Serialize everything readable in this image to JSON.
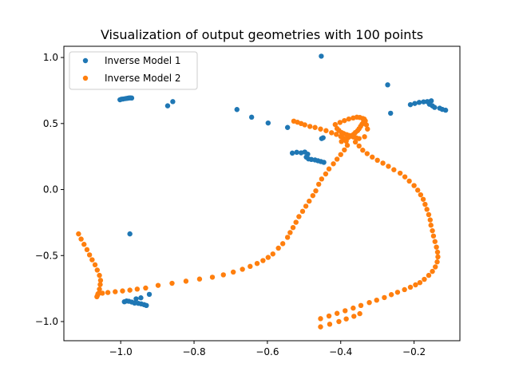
{
  "chart_data": {
    "type": "scatter",
    "title": "Visualization of output geometries with 100 points",
    "xlabel": "",
    "ylabel": "",
    "xlim": [
      -1.155,
      -0.075
    ],
    "ylim": [
      -1.145,
      1.085
    ],
    "x_ticks": [
      -1.0,
      -0.8,
      -0.6,
      -0.4,
      -0.2
    ],
    "x_tick_labels": [
      "−1.0",
      "−0.8",
      "−0.6",
      "−0.4",
      "−0.2"
    ],
    "y_ticks": [
      -1.0,
      -0.5,
      0.0,
      0.5,
      1.0
    ],
    "y_tick_labels": [
      "−1.0",
      "−0.5",
      "0.0",
      "0.5",
      "1.0"
    ],
    "grid": false,
    "legend_position": "top-left",
    "series": [
      {
        "name": "Inverse Model 1",
        "color": "#1f77b4",
        "points": [
          [
            -1.002,
            0.68
          ],
          [
            -0.998,
            0.684
          ],
          [
            -0.993,
            0.686
          ],
          [
            -0.987,
            0.689
          ],
          [
            -0.982,
            0.691
          ],
          [
            -0.978,
            0.693
          ],
          [
            -0.974,
            0.694
          ],
          [
            -0.97,
            0.693
          ],
          [
            -0.872,
            0.634
          ],
          [
            -0.858,
            0.666
          ],
          [
            -0.683,
            0.606
          ],
          [
            -0.643,
            0.548
          ],
          [
            -0.598,
            0.504
          ],
          [
            -0.545,
            0.47
          ],
          [
            -0.453,
            1.01
          ],
          [
            -0.272,
            0.793
          ],
          [
            -0.264,
            0.578
          ],
          [
            -0.21,
            0.643
          ],
          [
            -0.198,
            0.652
          ],
          [
            -0.186,
            0.66
          ],
          [
            -0.174,
            0.664
          ],
          [
            -0.164,
            0.666
          ],
          [
            -0.158,
            0.664
          ],
          [
            -0.153,
            0.672
          ],
          [
            -0.158,
            0.646
          ],
          [
            -0.15,
            0.634
          ],
          [
            -0.144,
            0.622
          ],
          [
            -0.13,
            0.616
          ],
          [
            -0.123,
            0.607
          ],
          [
            -0.114,
            0.601
          ],
          [
            -0.532,
            0.276
          ],
          [
            -0.52,
            0.282
          ],
          [
            -0.508,
            0.278
          ],
          [
            -0.498,
            0.284
          ],
          [
            -0.49,
            0.268
          ],
          [
            -0.494,
            0.246
          ],
          [
            -0.488,
            0.232
          ],
          [
            -0.48,
            0.228
          ],
          [
            -0.47,
            0.224
          ],
          [
            -0.462,
            0.218
          ],
          [
            -0.454,
            0.212
          ],
          [
            -0.446,
            0.206
          ],
          [
            -0.452,
            0.386
          ],
          [
            -0.448,
            0.392
          ],
          [
            -0.975,
            -0.336
          ],
          [
            -0.99,
            -0.85
          ],
          [
            -0.984,
            -0.844
          ],
          [
            -0.978,
            -0.846
          ],
          [
            -0.97,
            -0.852
          ],
          [
            -0.962,
            -0.86
          ],
          [
            -0.952,
            -0.862
          ],
          [
            -0.944,
            -0.866
          ],
          [
            -0.936,
            -0.872
          ],
          [
            -0.93,
            -0.878
          ],
          [
            -0.958,
            -0.828
          ],
          [
            -0.945,
            -0.82
          ],
          [
            -0.922,
            -0.794
          ]
        ]
      },
      {
        "name": "Inverse Model 2",
        "color": "#ff7f0e",
        "points": [
          [
            -1.115,
            -0.336
          ],
          [
            -1.108,
            -0.375
          ],
          [
            -1.1,
            -0.415
          ],
          [
            -1.092,
            -0.455
          ],
          [
            -1.085,
            -0.495
          ],
          [
            -1.078,
            -0.532
          ],
          [
            -1.07,
            -0.57
          ],
          [
            -1.064,
            -0.61
          ],
          [
            -1.058,
            -0.65
          ],
          [
            -1.055,
            -0.688
          ],
          [
            -1.056,
            -0.72
          ],
          [
            -1.058,
            -0.755
          ],
          [
            -1.062,
            -0.79
          ],
          [
            -1.065,
            -0.812
          ],
          [
            -1.063,
            -0.8
          ],
          [
            -1.06,
            -0.786
          ],
          [
            -1.05,
            -0.785
          ],
          [
            -1.035,
            -0.78
          ],
          [
            -1.015,
            -0.774
          ],
          [
            -0.995,
            -0.768
          ],
          [
            -0.975,
            -0.762
          ],
          [
            -0.955,
            -0.754
          ],
          [
            -0.932,
            -0.746
          ],
          [
            -0.898,
            -0.726
          ],
          [
            -0.86,
            -0.71
          ],
          [
            -0.822,
            -0.694
          ],
          [
            -0.785,
            -0.678
          ],
          [
            -0.75,
            -0.664
          ],
          [
            -0.72,
            -0.646
          ],
          [
            -0.693,
            -0.625
          ],
          [
            -0.668,
            -0.604
          ],
          [
            -0.647,
            -0.582
          ],
          [
            -0.628,
            -0.56
          ],
          [
            -0.612,
            -0.538
          ],
          [
            -0.598,
            -0.514
          ],
          [
            -0.585,
            -0.488
          ],
          [
            -0.57,
            -0.444
          ],
          [
            -0.558,
            -0.41
          ],
          [
            -0.545,
            -0.362
          ],
          [
            -0.538,
            -0.326
          ],
          [
            -0.53,
            -0.288
          ],
          [
            -0.522,
            -0.248
          ],
          [
            -0.514,
            -0.205
          ],
          [
            -0.504,
            -0.165
          ],
          [
            -0.495,
            -0.126
          ],
          [
            -0.486,
            -0.088
          ],
          [
            -0.476,
            -0.046
          ],
          [
            -0.468,
            -0.01
          ],
          [
            -0.46,
            0.04
          ],
          [
            -0.452,
            0.08
          ],
          [
            -0.441,
            0.118
          ],
          [
            -0.432,
            0.156
          ],
          [
            -0.42,
            0.195
          ],
          [
            -0.41,
            0.23
          ],
          [
            -0.4,
            0.265
          ],
          [
            -0.39,
            0.3
          ],
          [
            -0.382,
            0.335
          ],
          [
            -0.385,
            0.366
          ],
          [
            -0.392,
            0.386
          ],
          [
            -0.4,
            0.402
          ],
          [
            -0.412,
            0.418
          ],
          [
            -0.425,
            0.43
          ],
          [
            -0.44,
            0.446
          ],
          [
            -0.455,
            0.458
          ],
          [
            -0.47,
            0.47
          ],
          [
            -0.484,
            0.478
          ],
          [
            -0.498,
            0.49
          ],
          [
            -0.508,
            0.5
          ],
          [
            -0.518,
            0.51
          ],
          [
            -0.528,
            0.518
          ],
          [
            -0.398,
            0.364
          ],
          [
            -0.39,
            0.378
          ],
          [
            -0.38,
            0.392
          ],
          [
            -0.372,
            0.408
          ],
          [
            -0.365,
            0.418
          ],
          [
            -0.36,
            0.432
          ],
          [
            -0.354,
            0.446
          ],
          [
            -0.35,
            0.46
          ],
          [
            -0.346,
            0.478
          ],
          [
            -0.342,
            0.495
          ],
          [
            -0.338,
            0.51
          ],
          [
            -0.336,
            0.525
          ],
          [
            -0.34,
            0.538
          ],
          [
            -0.348,
            0.546
          ],
          [
            -0.356,
            0.548
          ],
          [
            -0.366,
            0.542
          ],
          [
            -0.378,
            0.534
          ],
          [
            -0.39,
            0.522
          ],
          [
            -0.402,
            0.508
          ],
          [
            -0.415,
            0.492
          ],
          [
            -0.41,
            0.462
          ],
          [
            -0.405,
            0.448
          ],
          [
            -0.398,
            0.432
          ],
          [
            -0.392,
            0.424
          ],
          [
            -0.384,
            0.416
          ],
          [
            -0.378,
            0.41
          ],
          [
            -0.372,
            0.404
          ],
          [
            -0.365,
            0.398
          ],
          [
            -0.358,
            0.392
          ],
          [
            -0.35,
            0.386
          ],
          [
            -0.335,
            0.4
          ],
          [
            -0.327,
            0.458
          ],
          [
            -0.33,
            0.49
          ],
          [
            -0.333,
            0.52
          ],
          [
            -0.336,
            0.534
          ],
          [
            -0.358,
            0.39
          ],
          [
            -0.36,
            0.36
          ],
          [
            -0.35,
            0.33
          ],
          [
            -0.34,
            0.298
          ],
          [
            -0.328,
            0.272
          ],
          [
            -0.314,
            0.246
          ],
          [
            -0.3,
            0.222
          ],
          [
            -0.285,
            0.2
          ],
          [
            -0.27,
            0.176
          ],
          [
            -0.255,
            0.15
          ],
          [
            -0.238,
            0.124
          ],
          [
            -0.225,
            0.096
          ],
          [
            -0.213,
            0.064
          ],
          [
            -0.2,
            0.03
          ],
          [
            -0.19,
            -0.005
          ],
          [
            -0.182,
            -0.04
          ],
          [
            -0.175,
            -0.074
          ],
          [
            -0.17,
            -0.112
          ],
          [
            -0.165,
            -0.15
          ],
          [
            -0.16,
            -0.19
          ],
          [
            -0.156,
            -0.23
          ],
          [
            -0.154,
            -0.27
          ],
          [
            -0.15,
            -0.312
          ],
          [
            -0.147,
            -0.352
          ],
          [
            -0.143,
            -0.394
          ],
          [
            -0.139,
            -0.436
          ],
          [
            -0.136,
            -0.474
          ],
          [
            -0.135,
            -0.51
          ],
          [
            -0.137,
            -0.548
          ],
          [
            -0.142,
            -0.586
          ],
          [
            -0.15,
            -0.62
          ],
          [
            -0.16,
            -0.65
          ],
          [
            -0.172,
            -0.68
          ],
          [
            -0.184,
            -0.705
          ],
          [
            -0.196,
            -0.722
          ],
          [
            -0.21,
            -0.74
          ],
          [
            -0.226,
            -0.758
          ],
          [
            -0.245,
            -0.778
          ],
          [
            -0.262,
            -0.796
          ],
          [
            -0.281,
            -0.818
          ],
          [
            -0.302,
            -0.838
          ],
          [
            -0.322,
            -0.856
          ],
          [
            -0.345,
            -0.878
          ],
          [
            -0.366,
            -0.898
          ],
          [
            -0.388,
            -0.918
          ],
          [
            -0.41,
            -0.938
          ],
          [
            -0.432,
            -0.958
          ],
          [
            -0.455,
            -0.978
          ]
        ]
      },
      {
        "name": "",
        "color": "#ff7f0e",
        "points": [
          [
            -0.455,
            -1.04
          ],
          [
            -0.43,
            -1.02
          ],
          [
            -0.405,
            -1.0
          ],
          [
            -0.385,
            -0.98
          ],
          [
            -0.364,
            -0.96
          ],
          [
            -0.348,
            -0.94
          ]
        ]
      }
    ]
  }
}
